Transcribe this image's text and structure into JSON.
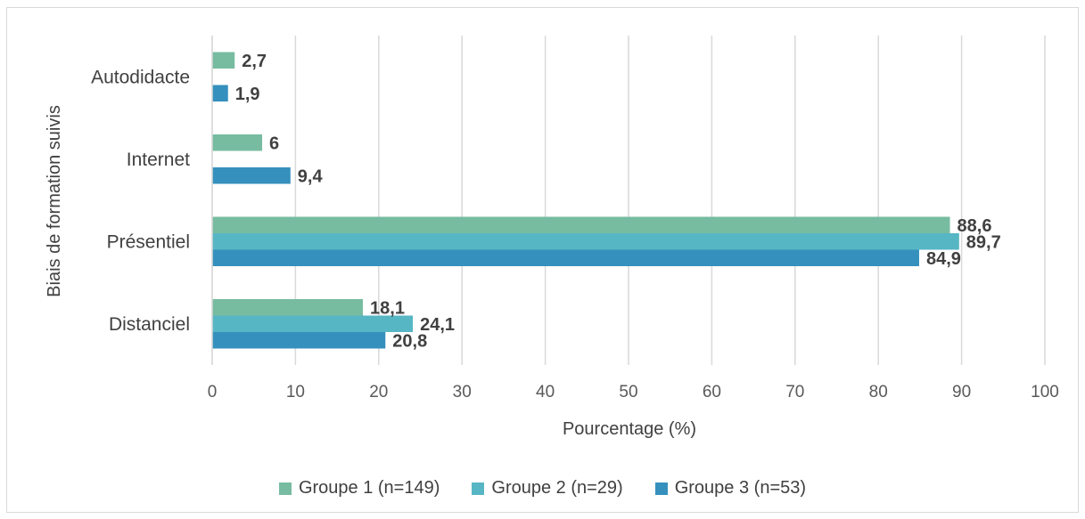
{
  "chart_data": {
    "type": "bar",
    "orientation": "horizontal",
    "categories": [
      "Autodidacte",
      "Internet",
      "Présentiel",
      "Distanciel"
    ],
    "series": [
      {
        "name": "Groupe 1 (n=149)",
        "values": [
          2.7,
          6,
          88.6,
          18.1
        ],
        "labels": [
          "2,7",
          "6",
          "88,6",
          "18,1"
        ],
        "color": "#77bca1"
      },
      {
        "name": "Groupe 2 (n=29)",
        "values": [
          null,
          null,
          89.7,
          24.1
        ],
        "labels": [
          "",
          "",
          "89,7",
          "24,1"
        ],
        "color": "#57b6c4"
      },
      {
        "name": "Groupe 3 (n=53)",
        "values": [
          1.9,
          9.4,
          84.9,
          20.8
        ],
        "labels": [
          "1,9",
          "9,4",
          "84,9",
          "20,8"
        ],
        "color": "#3590bd"
      }
    ],
    "xlabel": "Pourcentage (%)",
    "ylabel": "Biais de formation suivis",
    "xlim": [
      0,
      100
    ],
    "xticks": [
      "0",
      "10",
      "20",
      "30",
      "40",
      "50",
      "60",
      "70",
      "80",
      "90",
      "100"
    ],
    "grid": true,
    "legend_position": "bottom"
  }
}
